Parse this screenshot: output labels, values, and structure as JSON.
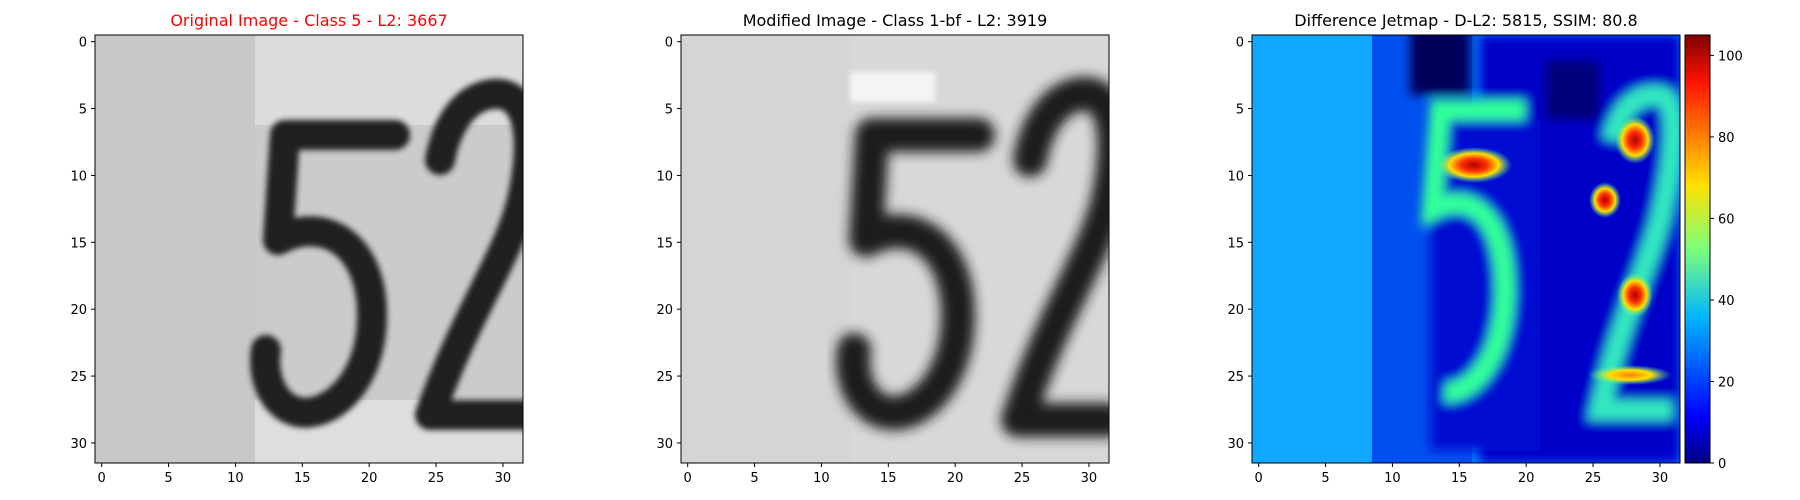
{
  "figure": {
    "panels": [
      {
        "title": "Original Image - Class 5 - L2: 3667",
        "title_color": "#ff0000",
        "type": "image",
        "colormap": "gray"
      },
      {
        "title": "Modified Image - Class 1-bf - L2: 3919",
        "title_color": "#000000",
        "type": "image",
        "colormap": "gray"
      },
      {
        "title": "Difference Jetmap - D-L2: 5815, SSIM: 80.8",
        "title_color": "#000000",
        "type": "heatmap",
        "colormap": "jet"
      }
    ]
  },
  "chart_data": [
    {
      "type": "heatmap",
      "title": "Original Image - Class 5 - L2: 3667",
      "grid": false,
      "image_size": [
        32,
        32
      ],
      "xlim": [
        -0.5,
        31.5
      ],
      "ylim": [
        31.5,
        -0.5
      ],
      "x_ticks": [
        0,
        5,
        10,
        15,
        20,
        25,
        30
      ],
      "y_ticks": [
        0,
        5,
        10,
        15,
        20,
        25,
        30
      ],
      "colormap": "gray",
      "content": "photo of a house-number digit pair: 5 followed by 2"
    },
    {
      "type": "heatmap",
      "title": "Modified Image - Class 1-bf - L2: 3919",
      "grid": false,
      "image_size": [
        32,
        32
      ],
      "xlim": [
        -0.5,
        31.5
      ],
      "ylim": [
        31.5,
        -0.5
      ],
      "x_ticks": [
        0,
        5,
        10,
        15,
        20,
        25,
        30
      ],
      "y_ticks": [
        0,
        5,
        10,
        15,
        20,
        25,
        30
      ],
      "colormap": "gray",
      "content": "blurred/perturbed version of the same 5 2 digits"
    },
    {
      "type": "heatmap",
      "title": "Difference Jetmap - D-L2: 5815, SSIM: 80.8",
      "grid": false,
      "image_size": [
        32,
        32
      ],
      "xlim": [
        -0.5,
        31.5
      ],
      "ylim": [
        31.5,
        -0.5
      ],
      "x_ticks": [
        0,
        5,
        10,
        15,
        20,
        25,
        30
      ],
      "y_ticks": [
        0,
        5,
        10,
        15,
        20,
        25,
        30
      ],
      "colormap": "jet",
      "colorbar": {
        "min": 0,
        "max": 105,
        "ticks": [
          0,
          20,
          40,
          60,
          80,
          100
        ]
      },
      "hotspots": [
        {
          "x": 17,
          "y": 9.5,
          "value": 100
        },
        {
          "x": 28,
          "y": 8,
          "value": 100
        },
        {
          "x": 25.5,
          "y": 12.5,
          "value": 95
        },
        {
          "x": 28,
          "y": 22,
          "value": 100
        },
        {
          "x": 28,
          "y": 28,
          "value": 70
        }
      ]
    }
  ]
}
